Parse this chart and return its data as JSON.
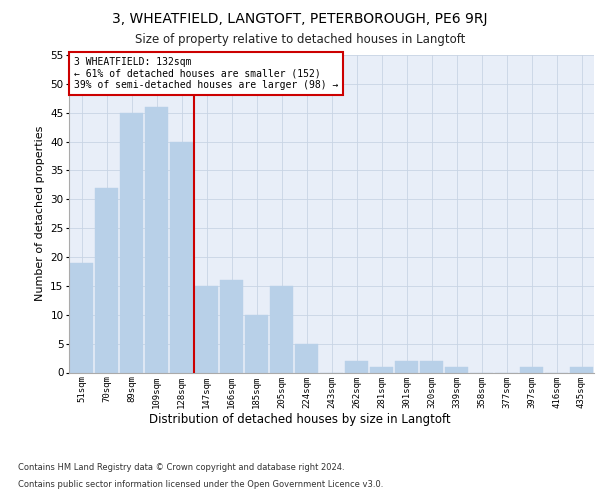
{
  "title1": "3, WHEATFIELD, LANGTOFT, PETERBOROUGH, PE6 9RJ",
  "title2": "Size of property relative to detached houses in Langtoft",
  "xlabel": "Distribution of detached houses by size in Langtoft",
  "ylabel": "Number of detached properties",
  "categories": [
    "51sqm",
    "70sqm",
    "89sqm",
    "109sqm",
    "128sqm",
    "147sqm",
    "166sqm",
    "185sqm",
    "205sqm",
    "224sqm",
    "243sqm",
    "262sqm",
    "281sqm",
    "301sqm",
    "320sqm",
    "339sqm",
    "358sqm",
    "377sqm",
    "397sqm",
    "416sqm",
    "435sqm"
  ],
  "values": [
    19,
    32,
    45,
    46,
    40,
    15,
    16,
    10,
    15,
    5,
    0,
    2,
    1,
    2,
    2,
    1,
    0,
    0,
    1,
    0,
    1
  ],
  "bar_color": "#b8d0e8",
  "bar_edge_color": "#b8d0e8",
  "grid_color": "#c8d4e4",
  "vline_x": 4.5,
  "vline_color": "#cc0000",
  "annotation_text": "3 WHEATFIELD: 132sqm\n← 61% of detached houses are smaller (152)\n39% of semi-detached houses are larger (98) →",
  "annotation_box_color": "#ffffff",
  "annotation_box_edge": "#cc0000",
  "footer1": "Contains HM Land Registry data © Crown copyright and database right 2024.",
  "footer2": "Contains public sector information licensed under the Open Government Licence v3.0.",
  "ylim": [
    0,
    55
  ],
  "yticks": [
    0,
    5,
    10,
    15,
    20,
    25,
    30,
    35,
    40,
    45,
    50,
    55
  ],
  "bg_color": "#e8eef8"
}
